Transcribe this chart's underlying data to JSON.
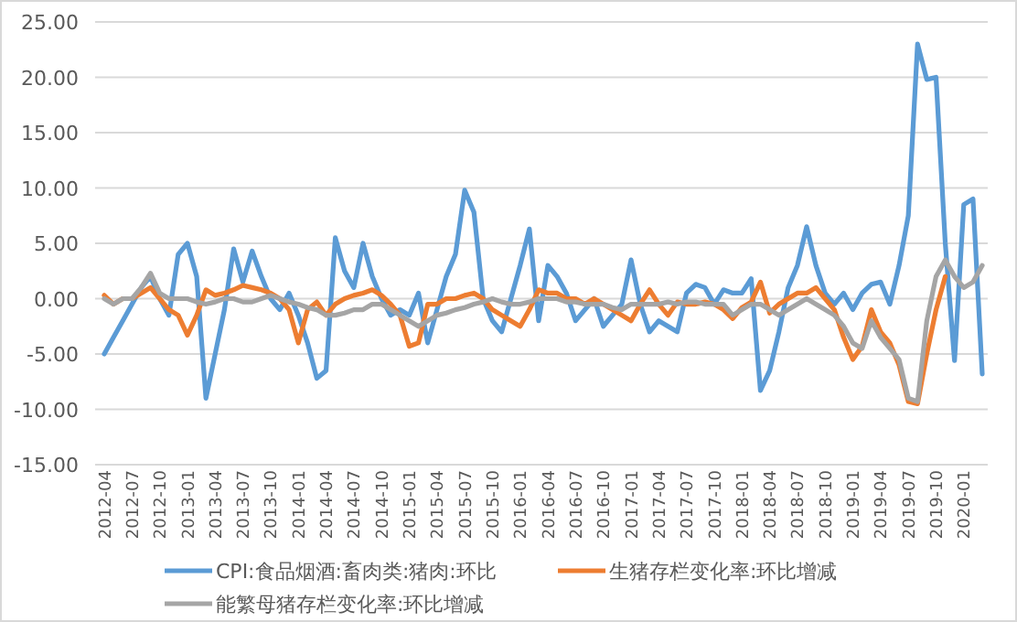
{
  "chart_data": {
    "type": "line",
    "categories": [
      "2012-04",
      null,
      null,
      "2012-07",
      null,
      null,
      "2012-10",
      null,
      null,
      "2013-01",
      null,
      null,
      "2013-04",
      null,
      null,
      "2013-07",
      null,
      null,
      "2013-10",
      null,
      null,
      "2014-01",
      null,
      null,
      "2014-04",
      null,
      null,
      "2014-07",
      null,
      null,
      "2014-10",
      null,
      null,
      "2015-01",
      null,
      null,
      "2015-04",
      null,
      null,
      "2015-07",
      null,
      null,
      "2015-10",
      null,
      null,
      "2016-01",
      null,
      null,
      "2016-04",
      null,
      null,
      "2016-07",
      null,
      null,
      "2016-10",
      null,
      null,
      "2017-01",
      null,
      null,
      "2017-04",
      null,
      null,
      "2017-07",
      null,
      null,
      "2017-10",
      null,
      null,
      "2018-01",
      null,
      null,
      "2018-04",
      null,
      null,
      "2018-07",
      null,
      null,
      "2018-10",
      null,
      null,
      "2019-01",
      null,
      null,
      "2019-04",
      null,
      null,
      "2019-07",
      null,
      null,
      "2019-10",
      null,
      null,
      "2020-01",
      null,
      null
    ],
    "series": [
      {
        "name": "CPI:食品烟酒:畜肉类:猪肉:环比",
        "color": "#5b9bd5",
        "values": [
          -5,
          -3.5,
          -2,
          -0.5,
          1,
          2,
          0,
          -1.5,
          4,
          5,
          2,
          -9,
          -5,
          -1,
          4.5,
          1.5,
          4.3,
          2,
          0,
          -1,
          0.5,
          -1.5,
          -4,
          -7.2,
          -6.5,
          5.5,
          2.5,
          1,
          5,
          2,
          0,
          -1.5,
          -1,
          -1.5,
          0.5,
          -4,
          -1,
          2,
          4,
          9.8,
          7.8,
          0,
          -2,
          -3,
          0,
          3,
          6.3,
          -2,
          3,
          2,
          0.5,
          -2,
          -1,
          0,
          -2.5,
          -1.5,
          -0.5,
          3.5,
          -0.5,
          -3,
          -2,
          -2.5,
          -3,
          0.5,
          1.3,
          1,
          -0.5,
          0.8,
          0.5,
          0.5,
          1.8,
          -8.3,
          -6.5,
          -3,
          1,
          3,
          6.5,
          3,
          0.5,
          -0.5,
          0.5,
          -1,
          0.5,
          1.3,
          1.5,
          -0.5,
          3,
          7.5,
          23,
          19.8,
          20,
          5,
          -5.6,
          8.5,
          9,
          -6.8
        ]
      },
      {
        "name": "生猪存栏变化率:环比增减",
        "color": "#ed7d31",
        "values": [
          0.3,
          -0.5,
          0,
          0,
          0.5,
          1,
          0,
          -1,
          -1.5,
          -3.3,
          -1.5,
          0.8,
          0.3,
          0.5,
          0.8,
          1.2,
          1,
          0.8,
          0.5,
          0,
          -1,
          -4,
          -1,
          -0.3,
          -1.5,
          -0.5,
          0,
          0.3,
          0.5,
          0.8,
          0.3,
          -0.5,
          -1.5,
          -4.3,
          -4,
          -0.5,
          -0.5,
          0,
          0,
          0.3,
          0.5,
          0,
          -1,
          -1.5,
          -2,
          -2.5,
          -1,
          0.8,
          0.5,
          0.5,
          0,
          0,
          -0.5,
          0,
          -0.5,
          -1,
          -1.5,
          -2,
          -0.5,
          0.8,
          -0.5,
          -1.5,
          -0.3,
          -0.5,
          -0.5,
          -0.3,
          -0.5,
          -1,
          -1.8,
          -0.8,
          -0.3,
          1.5,
          -1.3,
          -0.5,
          0,
          0.5,
          0.5,
          1,
          0,
          -1,
          -3.5,
          -5.5,
          -4.3,
          -1,
          -3,
          -4,
          -6,
          -9.3,
          -9.5,
          -5,
          -1,
          2,
          null,
          null,
          null,
          null
        ]
      },
      {
        "name": "能繁母猪存栏变化率:环比增减",
        "color": "#a5a5a5",
        "values": [
          0,
          -0.5,
          0,
          0,
          1,
          2.3,
          0.5,
          0,
          0,
          0,
          -0.3,
          -0.5,
          -0.3,
          0,
          0,
          -0.3,
          -0.3,
          0,
          0.3,
          0,
          -0.3,
          -0.5,
          -0.8,
          -1,
          -1.5,
          -1.5,
          -1.3,
          -1,
          -1,
          -0.5,
          -0.5,
          -1,
          -1.5,
          -2,
          -2.5,
          -2,
          -1.5,
          -1.3,
          -1,
          -0.8,
          -0.5,
          -0.3,
          0,
          -0.3,
          -0.5,
          -0.5,
          -0.3,
          0,
          0,
          0,
          -0.3,
          -0.3,
          -0.5,
          -0.5,
          -0.5,
          -0.8,
          -1,
          -0.5,
          -0.5,
          -0.5,
          -0.5,
          -0.3,
          -0.5,
          -0.3,
          -0.3,
          -0.5,
          -0.5,
          -0.5,
          -1.5,
          -1,
          -0.5,
          -0.5,
          -1,
          -1.5,
          -1,
          -0.5,
          0,
          -0.5,
          -1,
          -1.5,
          -2.5,
          -4,
          -4.5,
          -2,
          -3.5,
          -4.5,
          -5.5,
          -9,
          -9.3,
          -2,
          2,
          3.5,
          2,
          1,
          1.5,
          3
        ]
      }
    ],
    "ylim": [
      -15,
      25
    ],
    "yticks": [
      {
        "value": 25,
        "label": "25.00"
      },
      {
        "value": 20,
        "label": "20.00"
      },
      {
        "value": 15,
        "label": "15.00"
      },
      {
        "value": 10,
        "label": "10.00"
      },
      {
        "value": 5,
        "label": "5.00"
      },
      {
        "value": 0,
        "label": "0.00"
      },
      {
        "value": -5,
        "label": "-5.00"
      },
      {
        "value": -10,
        "label": "-10.00"
      },
      {
        "value": -15,
        "label": "-15.00"
      }
    ],
    "grid": "y",
    "legend": "bottom",
    "marker": "none",
    "line_style": "solid"
  }
}
